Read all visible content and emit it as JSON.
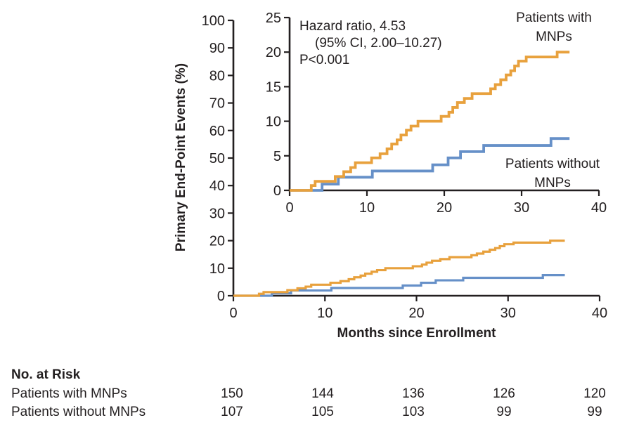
{
  "annotation": {
    "line1": "Hazard ratio, 4.53",
    "line2": "(95% CI, 2.00–10.27)",
    "line3": "P<0.001"
  },
  "series_labels": {
    "with_line1": "Patients with",
    "with_line2": "MNPs",
    "without_line1": "Patients without",
    "without_line2": "MNPs"
  },
  "colors": {
    "with_mnps": "#E8A13D",
    "without_mnps": "#6690C8",
    "axis": "#231F20",
    "text": "#231F20"
  },
  "chart_data": [
    {
      "id": "main",
      "type": "line",
      "subtype": "step-after",
      "title": "",
      "xlabel": "Months since Enrollment",
      "ylabel": "Primary End-Point Events (%)",
      "xlim": [
        0,
        40
      ],
      "ylim": [
        0,
        100
      ],
      "x_ticks": [
        0,
        10,
        20,
        30,
        40
      ],
      "y_ticks": [
        0,
        10,
        20,
        30,
        40,
        50,
        60,
        70,
        80,
        90,
        100
      ],
      "grid": false,
      "legend_position": "none",
      "series": [
        {
          "name": "Patients with MNPs",
          "color": "#E8A13D",
          "end_x": 36.2,
          "steps": [
            [
              0,
              0
            ],
            [
              2.8,
              0.7
            ],
            [
              3.3,
              1.3
            ],
            [
              5.9,
              2.0
            ],
            [
              7.0,
              2.7
            ],
            [
              7.9,
              3.3
            ],
            [
              8.5,
              4.0
            ],
            [
              10.6,
              4.7
            ],
            [
              11.7,
              5.3
            ],
            [
              12.6,
              6.0
            ],
            [
              13.2,
              6.7
            ],
            [
              13.9,
              7.3
            ],
            [
              14.4,
              8.0
            ],
            [
              15.1,
              8.7
            ],
            [
              15.7,
              9.3
            ],
            [
              16.6,
              10.0
            ],
            [
              19.6,
              10.7
            ],
            [
              20.6,
              11.3
            ],
            [
              21.1,
              12.0
            ],
            [
              21.7,
              12.7
            ],
            [
              22.6,
              13.3
            ],
            [
              23.6,
              14.0
            ],
            [
              26.0,
              14.7
            ],
            [
              26.6,
              15.3
            ],
            [
              27.3,
              16.0
            ],
            [
              28.0,
              16.7
            ],
            [
              28.6,
              17.3
            ],
            [
              29.1,
              18.0
            ],
            [
              29.6,
              18.7
            ],
            [
              30.6,
              19.3
            ],
            [
              34.6,
              20.0
            ]
          ]
        },
        {
          "name": "Patients without MNPs",
          "color": "#6690C8",
          "end_x": 36.2,
          "steps": [
            [
              0,
              0
            ],
            [
              4.2,
              0.9
            ],
            [
              6.3,
              1.9
            ],
            [
              10.7,
              2.8
            ],
            [
              18.5,
              3.7
            ],
            [
              20.5,
              4.7
            ],
            [
              22.1,
              5.6
            ],
            [
              25.1,
              6.5
            ],
            [
              33.8,
              7.5
            ]
          ]
        }
      ]
    },
    {
      "id": "inset",
      "type": "line",
      "subtype": "step-after",
      "title": "",
      "xlabel": "",
      "ylabel": "",
      "xlim": [
        0,
        40
      ],
      "ylim": [
        0,
        25
      ],
      "x_ticks": [
        0,
        10,
        20,
        30,
        40
      ],
      "y_ticks": [
        0,
        5,
        10,
        15,
        20,
        25
      ],
      "grid": false,
      "legend_position": "inline-text-labels",
      "annotations": [
        "Hazard ratio, 4.53",
        "(95% CI, 2.00–10.27)",
        "P<0.001"
      ],
      "series": [
        {
          "name": "Patients with MNPs",
          "color": "#E8A13D",
          "end_x": 36.2,
          "steps": [
            [
              0,
              0
            ],
            [
              2.8,
              0.7
            ],
            [
              3.3,
              1.3
            ],
            [
              5.9,
              2.0
            ],
            [
              7.0,
              2.7
            ],
            [
              7.9,
              3.3
            ],
            [
              8.5,
              4.0
            ],
            [
              10.6,
              4.7
            ],
            [
              11.7,
              5.3
            ],
            [
              12.6,
              6.0
            ],
            [
              13.2,
              6.7
            ],
            [
              13.9,
              7.3
            ],
            [
              14.4,
              8.0
            ],
            [
              15.1,
              8.7
            ],
            [
              15.7,
              9.3
            ],
            [
              16.6,
              10.0
            ],
            [
              19.6,
              10.7
            ],
            [
              20.6,
              11.3
            ],
            [
              21.1,
              12.0
            ],
            [
              21.7,
              12.7
            ],
            [
              22.6,
              13.3
            ],
            [
              23.6,
              14.0
            ],
            [
              26.0,
              14.7
            ],
            [
              26.6,
              15.3
            ],
            [
              27.3,
              16.0
            ],
            [
              28.0,
              16.7
            ],
            [
              28.6,
              17.3
            ],
            [
              29.1,
              18.0
            ],
            [
              29.6,
              18.7
            ],
            [
              30.6,
              19.3
            ],
            [
              34.6,
              20.0
            ]
          ]
        },
        {
          "name": "Patients without MNPs",
          "color": "#6690C8",
          "end_x": 36.2,
          "steps": [
            [
              0,
              0
            ],
            [
              4.2,
              0.9
            ],
            [
              6.3,
              1.9
            ],
            [
              10.7,
              2.8
            ],
            [
              18.5,
              3.7
            ],
            [
              20.5,
              4.7
            ],
            [
              22.1,
              5.6
            ],
            [
              25.1,
              6.5
            ],
            [
              33.8,
              7.5
            ]
          ]
        }
      ]
    }
  ],
  "axis_titles": {
    "main_y": "Primary End-Point Events (%)",
    "main_x": "Months since Enrollment"
  },
  "no_at_risk": {
    "title": "No. at Risk",
    "rows": [
      {
        "label": "Patients with MNPs",
        "counts": [
          "150",
          "144",
          "136",
          "126",
          "120"
        ]
      },
      {
        "label": "Patients without MNPs",
        "counts": [
          "107",
          "105",
          "103",
          "99",
          "99"
        ]
      }
    ]
  }
}
